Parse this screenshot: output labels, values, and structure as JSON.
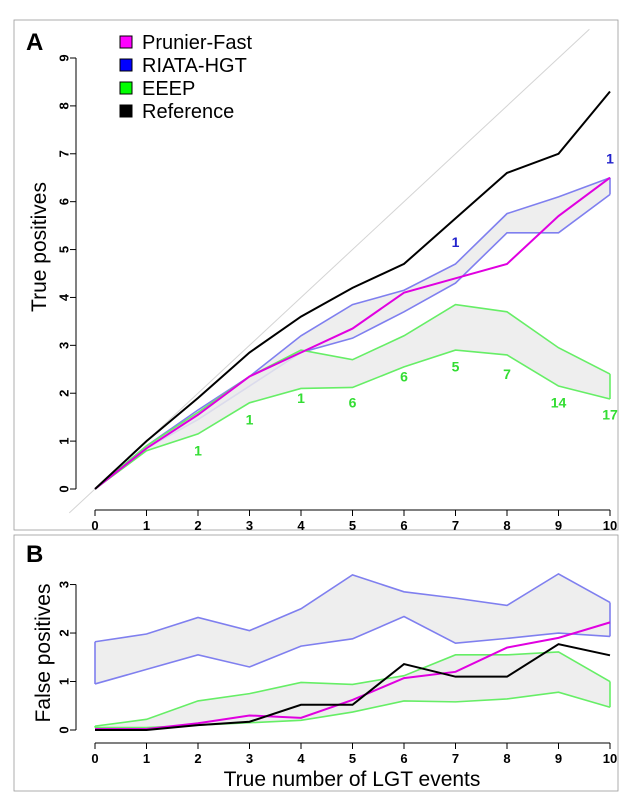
{
  "chart_data": [
    {
      "panel": "A",
      "type": "line",
      "title": "",
      "xlabel": "",
      "ylabel": "True positives",
      "x": [
        0,
        1,
        2,
        3,
        4,
        5,
        6,
        7,
        8,
        9,
        10
      ],
      "xlim": [
        0,
        10
      ],
      "ylim": [
        0,
        9
      ],
      "x_ticks": [
        0,
        1,
        2,
        3,
        4,
        5,
        6,
        7,
        8,
        9,
        10
      ],
      "y_ticks": [
        0,
        1,
        2,
        3,
        4,
        5,
        6,
        7,
        8,
        9
      ],
      "grid": false,
      "diagonal_reference": true,
      "legend": {
        "placement": "top-left",
        "entries": [
          {
            "label": "Prunier-Fast",
            "color": "#ff00ff"
          },
          {
            "label": "RIATA-HGT",
            "color": "#0000ff"
          },
          {
            "label": "EEEP",
            "color": "#00ff00"
          },
          {
            "label": "Reference",
            "color": "#000000"
          }
        ]
      },
      "series": [
        {
          "name": "Prunier-Fast",
          "color": "#e000e0",
          "kind": "line",
          "values": [
            0,
            0.85,
            1.55,
            2.35,
            2.85,
            3.35,
            4.1,
            4.4,
            4.7,
            5.7,
            6.5
          ]
        },
        {
          "name": "RIATA-HGT",
          "color": "#7f7fef",
          "kind": "band",
          "upper": [
            0,
            0.9,
            1.65,
            2.35,
            3.2,
            3.85,
            4.15,
            4.7,
            5.75,
            6.1,
            6.5
          ],
          "lower": [
            0,
            0.85,
            1.45,
            2.15,
            2.85,
            3.15,
            3.7,
            4.3,
            5.35,
            5.35,
            6.15
          ]
        },
        {
          "name": "EEEP",
          "color": "#66ee66",
          "kind": "band",
          "upper": [
            0,
            0.9,
            1.6,
            2.35,
            2.9,
            2.7,
            3.2,
            3.85,
            3.7,
            2.95,
            2.4
          ],
          "lower": [
            0,
            0.8,
            1.15,
            1.8,
            2.1,
            2.12,
            2.55,
            2.9,
            2.8,
            2.15,
            1.88
          ]
        },
        {
          "name": "Reference",
          "color": "#000000",
          "kind": "line",
          "values": [
            0,
            1.0,
            1.9,
            2.85,
            3.6,
            4.2,
            4.7,
            5.65,
            6.6,
            7.0,
            8.3
          ]
        }
      ],
      "annotations": [
        {
          "text": "1",
          "x": 2,
          "y": 0.7,
          "color": "#33dd33"
        },
        {
          "text": "1",
          "x": 3,
          "y": 1.35,
          "color": "#33dd33"
        },
        {
          "text": "1",
          "x": 4,
          "y": 1.8,
          "color": "#33dd33"
        },
        {
          "text": "6",
          "x": 5,
          "y": 1.7,
          "color": "#33dd33"
        },
        {
          "text": "6",
          "x": 6,
          "y": 2.25,
          "color": "#33dd33"
        },
        {
          "text": "5",
          "x": 7,
          "y": 2.45,
          "color": "#33dd33"
        },
        {
          "text": "7",
          "x": 8,
          "y": 2.3,
          "color": "#33dd33"
        },
        {
          "text": "14",
          "x": 9,
          "y": 1.7,
          "color": "#33dd33"
        },
        {
          "text": "17",
          "x": 10,
          "y": 1.45,
          "color": "#33dd33"
        },
        {
          "text": "1",
          "x": 7,
          "y": 5.05,
          "color": "#2222cc"
        },
        {
          "text": "1",
          "x": 10,
          "y": 6.8,
          "color": "#2222cc"
        }
      ]
    },
    {
      "panel": "B",
      "type": "line",
      "title": "",
      "xlabel": "True number of LGT events",
      "ylabel": "False positives",
      "x": [
        0,
        1,
        2,
        3,
        4,
        5,
        6,
        7,
        8,
        9,
        10
      ],
      "xlim": [
        0,
        10
      ],
      "ylim": [
        0,
        3.3
      ],
      "x_ticks": [
        0,
        1,
        2,
        3,
        4,
        5,
        6,
        7,
        8,
        9,
        10
      ],
      "y_ticks": [
        0,
        1,
        2,
        3
      ],
      "grid": false,
      "series": [
        {
          "name": "RIATA-HGT",
          "color": "#7f7fef",
          "kind": "band",
          "upper": [
            1.82,
            1.98,
            2.32,
            2.05,
            2.5,
            3.2,
            2.85,
            2.72,
            2.57,
            3.22,
            2.63
          ],
          "lower": [
            0.95,
            1.25,
            1.55,
            1.3,
            1.73,
            1.88,
            2.34,
            1.79,
            1.89,
            2.0,
            1.93
          ]
        },
        {
          "name": "EEEP",
          "color": "#66ee66",
          "kind": "band",
          "upper": [
            0.08,
            0.22,
            0.6,
            0.75,
            0.98,
            0.94,
            1.12,
            1.55,
            1.55,
            1.61,
            1.0
          ],
          "lower": [
            0.05,
            0.05,
            0.1,
            0.15,
            0.2,
            0.37,
            0.6,
            0.58,
            0.64,
            0.78,
            0.47
          ]
        },
        {
          "name": "Prunier-Fast",
          "color": "#e000e0",
          "kind": "line",
          "values": [
            0.02,
            0.02,
            0.14,
            0.3,
            0.25,
            0.62,
            1.07,
            1.2,
            1.7,
            1.9,
            2.22
          ]
        },
        {
          "name": "Reference",
          "color": "#000000",
          "kind": "line",
          "values": [
            0.0,
            0.0,
            0.1,
            0.17,
            0.52,
            0.52,
            1.36,
            1.1,
            1.1,
            1.77,
            1.54
          ]
        }
      ]
    }
  ]
}
